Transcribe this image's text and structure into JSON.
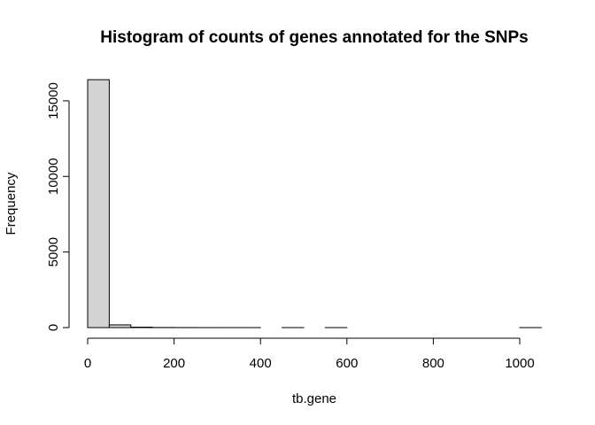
{
  "chart_data": {
    "type": "bar",
    "subtype": "histogram",
    "title": "Histogram of counts of genes annotated for the SNPs",
    "xlabel": "tb.gene",
    "ylabel": "Frequency",
    "bin_edges": [
      0,
      50,
      100,
      150,
      200,
      250,
      300,
      350,
      400,
      450,
      500,
      550,
      600,
      650,
      700,
      750,
      800,
      850,
      900,
      950,
      1000,
      1050
    ],
    "values": [
      16400,
      180,
      30,
      8,
      4,
      2,
      1,
      1,
      0,
      1,
      0,
      1,
      0,
      0,
      0,
      0,
      0,
      0,
      0,
      0,
      1
    ],
    "xlim": [
      0,
      1050
    ],
    "ylim": [
      0,
      16400
    ],
    "x_ticks": [
      0,
      200,
      400,
      600,
      800,
      1000
    ],
    "y_ticks": [
      0,
      5000,
      10000,
      15000
    ],
    "bar_fill": "#d3d3d3",
    "bar_stroke": "#000000",
    "grid": false,
    "legend": "none"
  }
}
